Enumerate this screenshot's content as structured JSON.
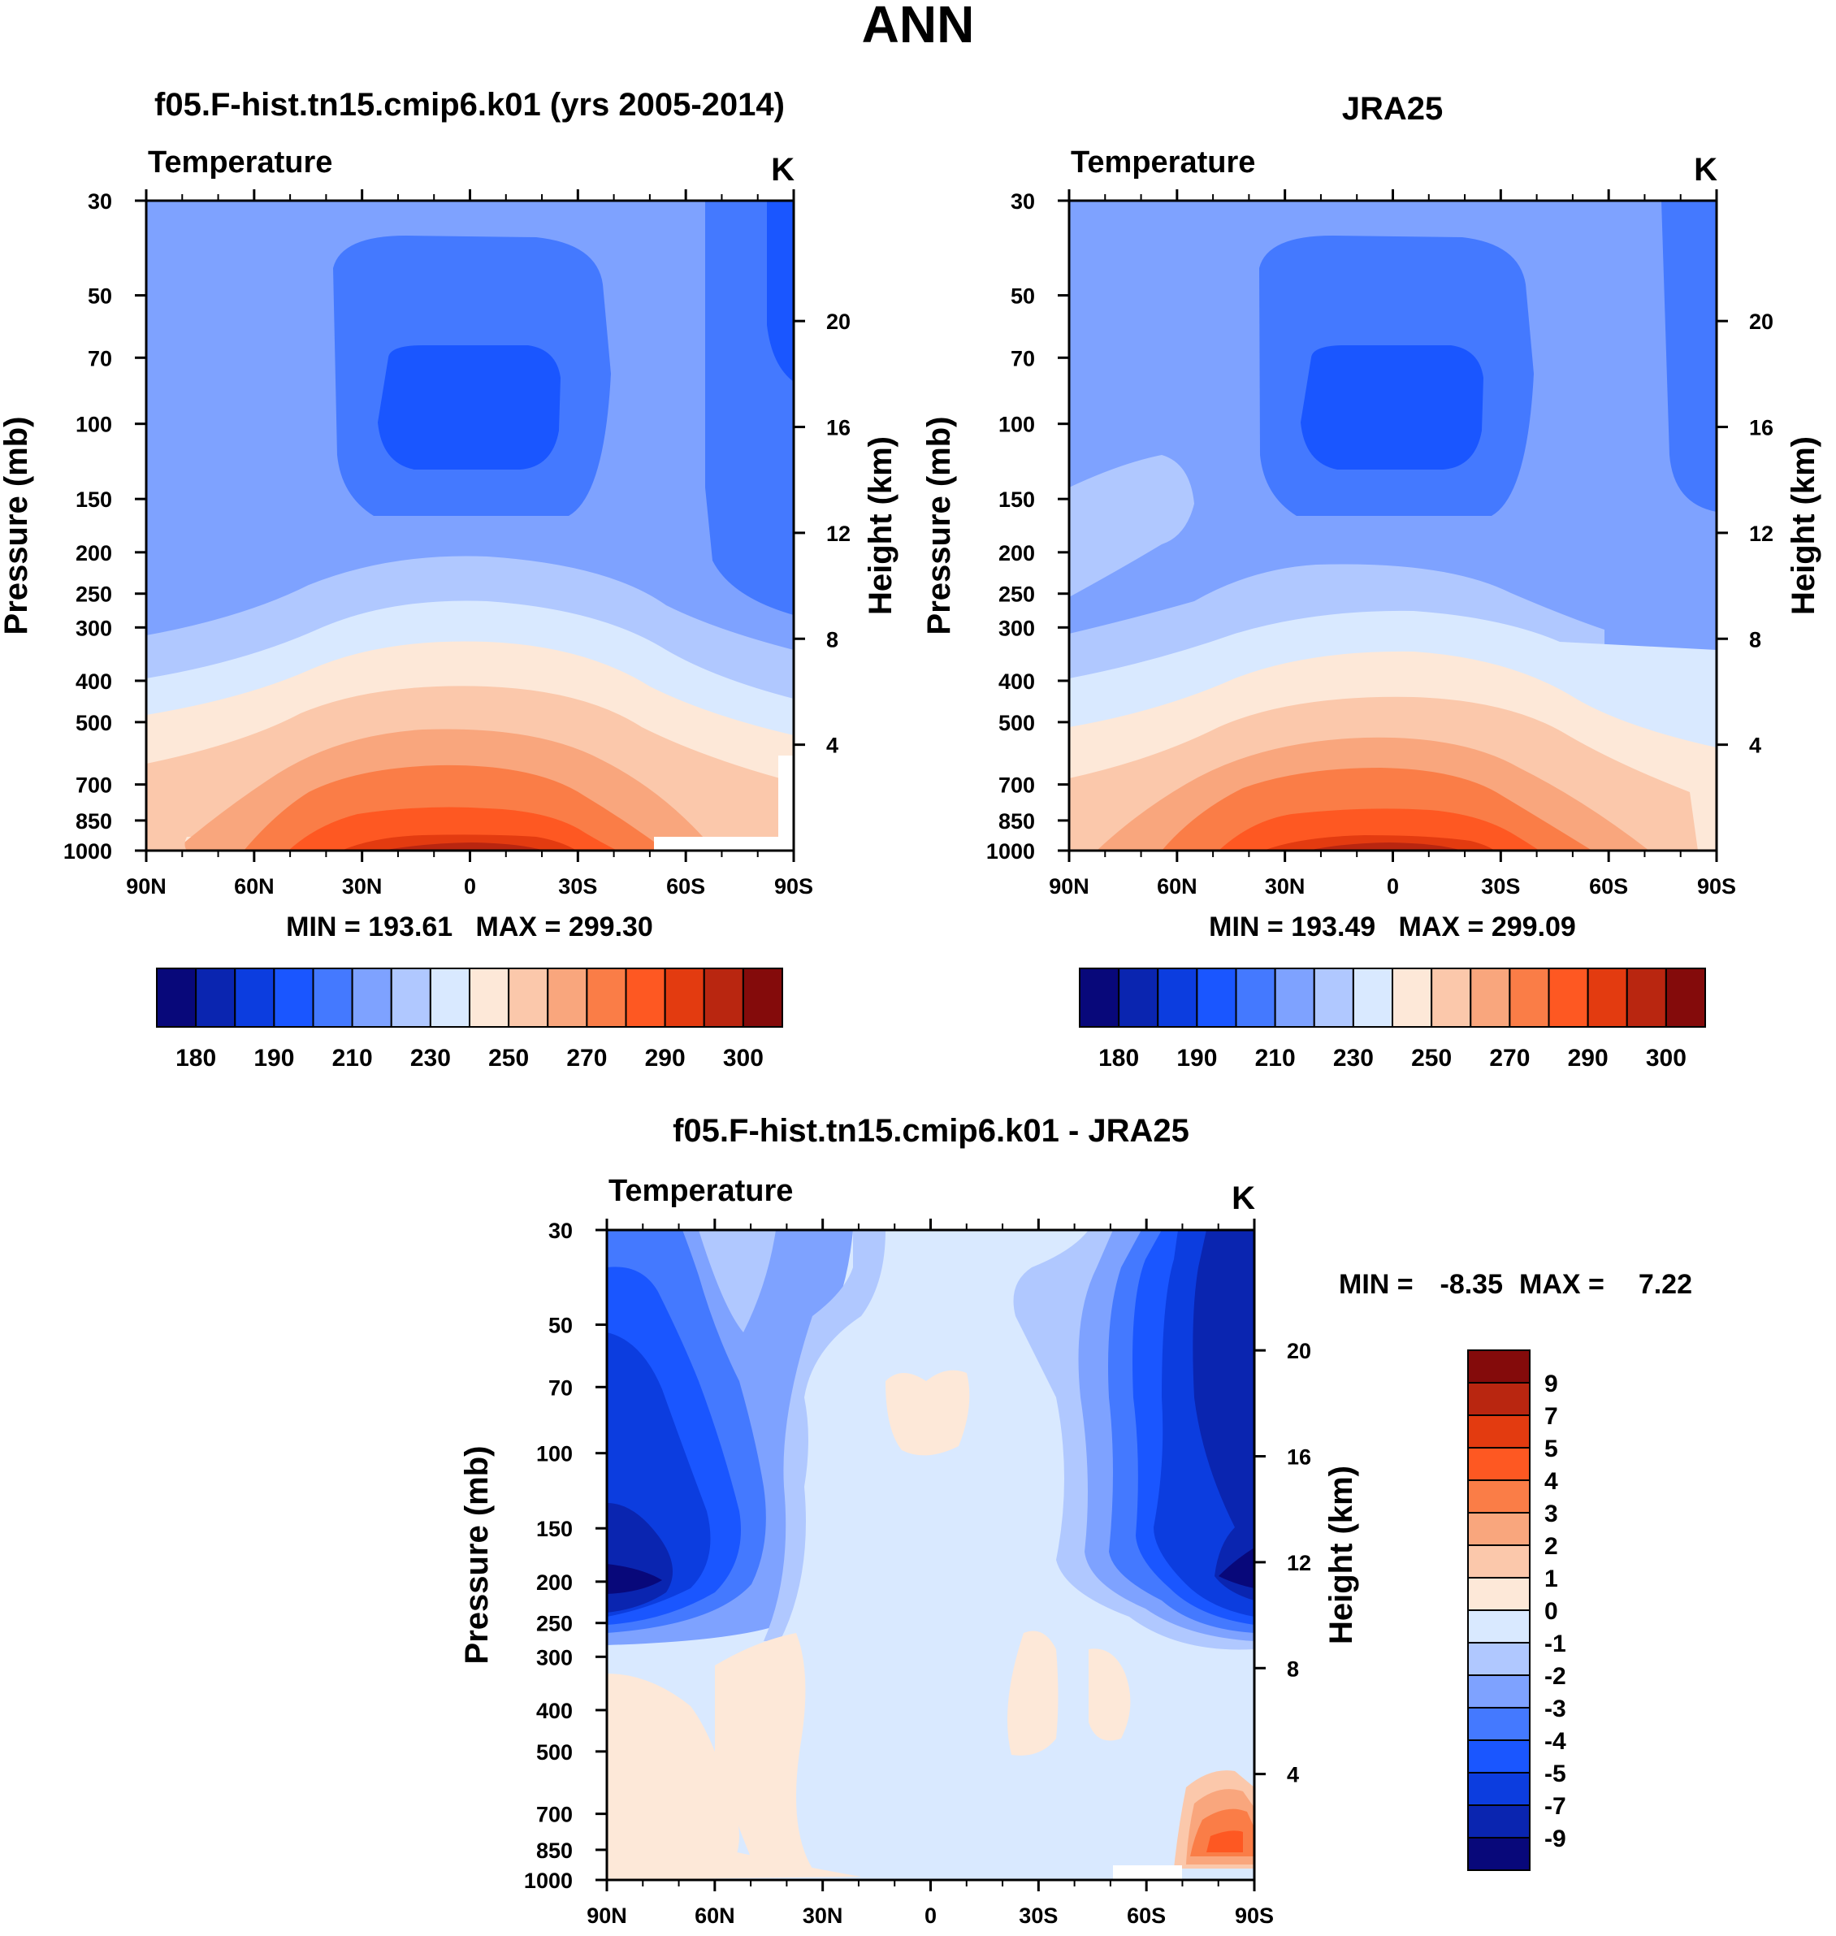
{
  "title": "ANN",
  "colors": {
    "temperature_levels": [
      "#08087a",
      "#0a25b0",
      "#0c3ddf",
      "#1a56ff",
      "#4479ff",
      "#7ea2ff",
      "#b0c8ff",
      "#d9e9ff",
      "#fde8d8",
      "#fbc8ab",
      "#f9a67d",
      "#fa7d47",
      "#fe5822",
      "#e33b10",
      "#b92610",
      "#840b0b"
    ],
    "difference_levels": [
      "#08087a",
      "#0a25b0",
      "#0c3ddf",
      "#1a56ff",
      "#4479ff",
      "#7ea2ff",
      "#b0c8ff",
      "#d9e9ff",
      "#fde8d8",
      "#fbc8ab",
      "#f9a67d",
      "#fa7d47",
      "#fe5822",
      "#e33b10",
      "#b92610",
      "#840b0b"
    ]
  },
  "panels": [
    {
      "id": "model",
      "title": "f05.F-hist.tn15.cmip6.k01 (yrs 2005-2014)",
      "variable": "Temperature",
      "units": "K",
      "stats": "MIN = 193.61   MAX = 299.30"
    },
    {
      "id": "obs",
      "title": "JRA25",
      "variable": "Temperature",
      "units": "K",
      "stats": "MIN = 193.49   MAX = 299.09"
    },
    {
      "id": "diff",
      "title": "f05.F-hist.tn15.cmip6.k01 - JRA25",
      "variable": "Temperature",
      "units": "K",
      "stats_min_label": "MIN =",
      "stats_min": "-8.35",
      "stats_max_label": "MAX =",
      "stats_max": "7.22"
    }
  ],
  "axes": {
    "x_ticks": [
      "90N",
      "60N",
      "30N",
      "0",
      "30S",
      "60S",
      "90S"
    ],
    "pressure_ticks": [
      "30",
      "50",
      "70",
      "100",
      "150",
      "200",
      "250",
      "300",
      "400",
      "500",
      "700",
      "850",
      "1000"
    ],
    "height_ticks": [
      "20",
      "16",
      "12",
      "8",
      "4"
    ],
    "left_label": "Pressure (mb)",
    "right_label": "Height (km)"
  },
  "colorbars": {
    "temperature_labels": [
      "180",
      "190",
      "210",
      "230",
      "250",
      "270",
      "290",
      "300"
    ],
    "difference_labels": [
      "9",
      "7",
      "5",
      "4",
      "3",
      "2",
      "1",
      "0",
      "-1",
      "-2",
      "-3",
      "-4",
      "-5",
      "-7",
      "-9"
    ]
  },
  "chart_data": [
    {
      "type": "heatmap",
      "title": "f05.F-hist.tn15.cmip6.k01 (yrs 2005-2014)",
      "subtitle": "Temperature",
      "units": "K",
      "xlabel": "",
      "ylabel": "Pressure (mb)",
      "ylabel_right": "Height (km)",
      "x_ticks": [
        "90N",
        "60N",
        "30N",
        "0",
        "30S",
        "60S",
        "90S"
      ],
      "xlim": [
        90,
        -90
      ],
      "ylim_mb": [
        1000,
        30
      ],
      "y_scale": "log",
      "contour_levels": [
        180,
        190,
        210,
        230,
        250,
        270,
        290,
        300
      ],
      "min": 193.61,
      "max": 299.3
    },
    {
      "type": "heatmap",
      "title": "JRA25",
      "subtitle": "Temperature",
      "units": "K",
      "xlabel": "",
      "ylabel": "Pressure (mb)",
      "ylabel_right": "Height (km)",
      "x_ticks": [
        "90N",
        "60N",
        "30N",
        "0",
        "30S",
        "60S",
        "90S"
      ],
      "xlim": [
        90,
        -90
      ],
      "ylim_mb": [
        1000,
        30
      ],
      "y_scale": "log",
      "contour_levels": [
        180,
        190,
        210,
        230,
        250,
        270,
        290,
        300
      ],
      "min": 193.49,
      "max": 299.09
    },
    {
      "type": "heatmap",
      "title": "f05.F-hist.tn15.cmip6.k01 - JRA25",
      "subtitle": "Temperature",
      "units": "K",
      "xlabel": "",
      "ylabel": "Pressure (mb)",
      "ylabel_right": "Height (km)",
      "x_ticks": [
        "90N",
        "60N",
        "30N",
        "0",
        "30S",
        "60S",
        "90S"
      ],
      "xlim": [
        90,
        -90
      ],
      "ylim_mb": [
        1000,
        30
      ],
      "y_scale": "log",
      "contour_levels": [
        -9,
        -7,
        -5,
        -4,
        -3,
        -2,
        -1,
        0,
        1,
        2,
        3,
        4,
        5,
        7,
        9
      ],
      "min": -8.35,
      "max": 7.22
    }
  ]
}
